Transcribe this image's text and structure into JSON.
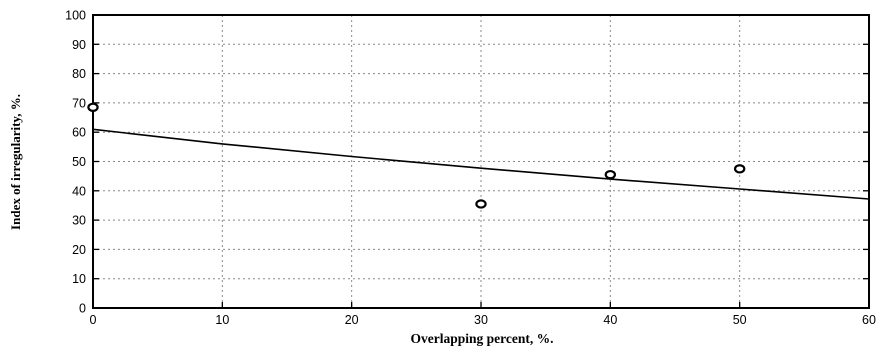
{
  "chart_data": {
    "type": "scatter",
    "title": "",
    "xlabel": "Overlapping percent, %.",
    "ylabel": "Index of irregularity, %.",
    "xlim": [
      0,
      60
    ],
    "ylim": [
      0,
      100
    ],
    "x_ticks": [
      "0",
      "10",
      "20",
      "30",
      "40",
      "50",
      "60"
    ],
    "y_ticks": [
      "0",
      "10",
      "20",
      "30",
      "40",
      "50",
      "60",
      "70",
      "80",
      "90",
      "100"
    ],
    "grid": true,
    "series": [
      {
        "points": [
          {
            "x": 0,
            "y": 68.5
          },
          {
            "x": 30,
            "y": 35.5
          },
          {
            "x": 40,
            "y": 45.5
          },
          {
            "x": 50,
            "y": 47.5
          }
        ]
      }
    ],
    "trend_line": {
      "x": [
        0,
        10,
        20,
        30,
        40,
        50,
        60
      ],
      "y": [
        61,
        56,
        51.7,
        47.7,
        44.0,
        40.6,
        37.2
      ]
    }
  }
}
